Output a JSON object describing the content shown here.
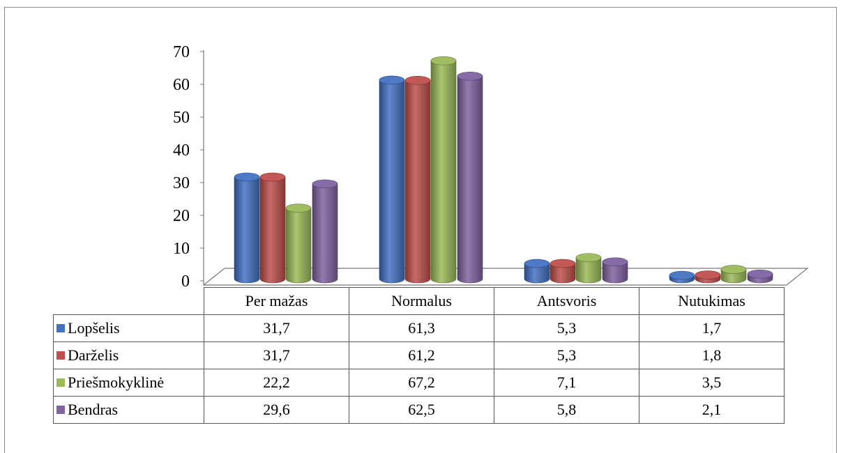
{
  "chart_data": {
    "type": "bar",
    "title": "",
    "xlabel": "",
    "ylabel": "",
    "ylim": [
      0,
      70
    ],
    "yticks": [
      0,
      10,
      20,
      30,
      40,
      50,
      60,
      70
    ],
    "categories": [
      "Per mažas",
      "Normalus",
      "Antsvoris",
      "Nutukimas"
    ],
    "series": [
      {
        "name": "Lopšelis",
        "color": "#4472C4",
        "values": [
          31.7,
          61.3,
          5.3,
          1.7
        ],
        "labels": [
          "31,7",
          "61,3",
          "5,3",
          "1,7"
        ]
      },
      {
        "name": "Darželis",
        "color": "#C0504D",
        "values": [
          31.7,
          61.2,
          5.3,
          1.8
        ],
        "labels": [
          "31,7",
          "61,2",
          "5,3",
          "1,8"
        ]
      },
      {
        "name": "Priešmokyklinė",
        "color": "#9BBB59",
        "values": [
          22.2,
          67.2,
          7.1,
          3.5
        ],
        "labels": [
          "22,2",
          "67,2",
          "7,1",
          "3,5"
        ]
      },
      {
        "name": "Bendras",
        "color": "#8064A2",
        "values": [
          29.6,
          62.5,
          5.8,
          2.1
        ],
        "labels": [
          "29,6",
          "62,5",
          "5,8",
          "2,1"
        ]
      }
    ],
    "legend": "data-table-below",
    "grid": false,
    "style": "3d-cylinder"
  }
}
